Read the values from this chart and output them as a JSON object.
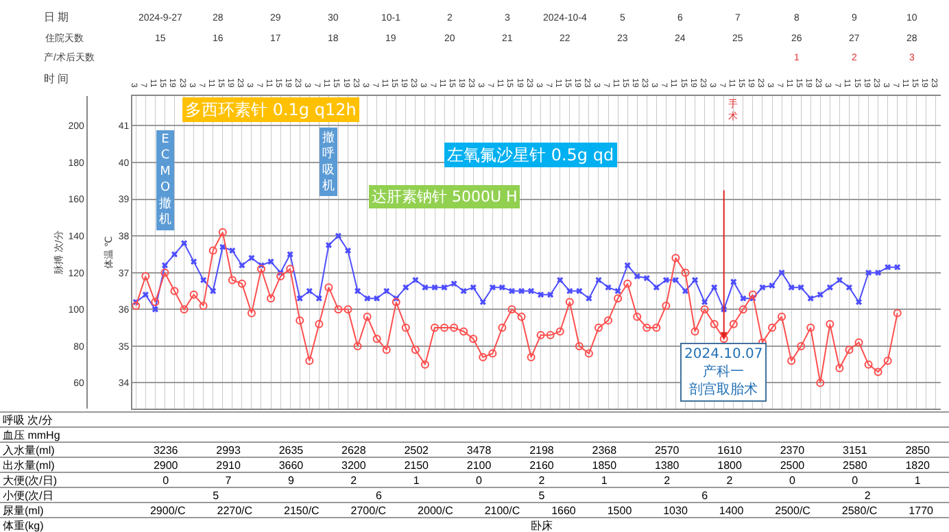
{
  "chart_data": {
    "type": "line",
    "categories": [
      "3",
      "7",
      "11",
      "15",
      "19",
      "23",
      "3",
      "7",
      "11",
      "15",
      "19",
      "23",
      "3",
      "7",
      "11",
      "15",
      "19",
      "23",
      "3",
      "7",
      "11",
      "15",
      "19",
      "23",
      "3",
      "7",
      "11",
      "15",
      "19",
      "23",
      "3",
      "7",
      "11",
      "15",
      "19",
      "23",
      "3",
      "7",
      "11",
      "15",
      "19",
      "23",
      "3",
      "7",
      "11",
      "15",
      "19",
      "23",
      "3",
      "7",
      "11",
      "15",
      "19",
      "23",
      "3",
      "7",
      "11",
      "15",
      "19",
      "23",
      "3",
      "7",
      "11",
      "15",
      "19",
      "23",
      "3",
      "7",
      "11",
      "15",
      "19",
      "23",
      "3",
      "7",
      "11",
      "15",
      "19",
      "23",
      "3",
      "7",
      "11",
      "15",
      "19",
      "23"
    ],
    "series": [
      {
        "color": "#4d4dff",
        "marker": "cross",
        "values": [
          104,
          108,
          100,
          124,
          130,
          136,
          126,
          116,
          110,
          134,
          132,
          124,
          128,
          124,
          126,
          120,
          130,
          106,
          110,
          106,
          135,
          140,
          132,
          110,
          106,
          106,
          110,
          106,
          112,
          116,
          112,
          112,
          112,
          114,
          110,
          112,
          104,
          112,
          112,
          110,
          110,
          110,
          108,
          108,
          116,
          110,
          110,
          106,
          116,
          112,
          110,
          124,
          118,
          117,
          112,
          116,
          116,
          110,
          116,
          104,
          112,
          100,
          115,
          106,
          106,
          112,
          113,
          120,
          112,
          112,
          106,
          108,
          112,
          116,
          112,
          104,
          120,
          120,
          123,
          123,
          null,
          null,
          null,
          null
        ]
      },
      {
        "axis": "y2",
        "color": "#ff4d4d",
        "marker": "circle",
        "values": [
          36.1,
          36.9,
          36.2,
          37.0,
          36.5,
          36.0,
          36.4,
          36.1,
          37.6,
          38.1,
          36.8,
          36.7,
          35.9,
          37.1,
          36.3,
          36.9,
          37.1,
          35.7,
          34.6,
          35.6,
          36.6,
          36.0,
          36.0,
          35.0,
          35.8,
          35.2,
          34.9,
          36.2,
          35.5,
          34.9,
          34.5,
          35.5,
          35.5,
          35.5,
          35.4,
          35.2,
          34.7,
          34.8,
          35.5,
          36.0,
          35.8,
          34.7,
          35.3,
          35.3,
          35.4,
          36.2,
          35.0,
          34.8,
          35.5,
          35.7,
          36.3,
          36.7,
          35.8,
          35.5,
          35.5,
          36.1,
          37.4,
          37.0,
          35.4,
          36.0,
          35.6,
          35.2,
          35.6,
          36.0,
          36.4,
          35.1,
          35.5,
          35.8,
          34.6,
          35.0,
          35.5,
          34.0,
          35.6,
          34.4,
          34.9,
          35.1,
          34.5,
          34.3,
          34.6,
          35.9,
          null,
          null,
          null,
          null
        ]
      }
    ],
    "xlabel": "时 间",
    "ylabel": "脉搏 次/分",
    "y2label": "体温 ℃",
    "ylim": [
      46,
      216
    ],
    "yticks": [
      60,
      80,
      100,
      120,
      140,
      160,
      180,
      200
    ],
    "y2lim": [
      33.3,
      41.8
    ],
    "y2ticks": [
      34,
      35,
      36,
      37,
      38,
      39,
      40,
      41
    ],
    "grid": true,
    "annotations": [
      "日 期  2024-9-27  28  29  30  10-1  2  3  2024-10-4  5  6  7  8  9  10",
      "住院天数  15  16  17  18  19  20  21  22  23  24  25  26  27  28",
      "产/术后天数  1  2  3",
      "呼吸 次/分",
      "血压 mmHg",
      "入水量(ml)  3236  2993  2635  2628  2502  3478  2198  2368  2570  1610  2370  3151  2850",
      "出水量(ml)  2900  2910  3660  3200  2150  2100  2160  1850  1380  1800  2500  2580  1820",
      "大便(次/日)  0  7  9  2  1  0  2  1  2  2  0  0  1",
      "小便(次/日  5  6  5  6  2",
      "尿量(ml)  2900/C  2270/C  2150/C  2700/C  2000/C  2100/C  1660  1500  1030  1400  2500/C  2580/C  1770",
      "体重(kg)  卧床",
      "多西环素针 0.1g q12h",
      "左氧氟沙星针 0.5g qd",
      "达肝素钠针 5000U H",
      "ECMO撤机",
      "撤呼吸机",
      "2024.10.07产科一剖宫取胎术",
      "手术"
    ]
  }
}
